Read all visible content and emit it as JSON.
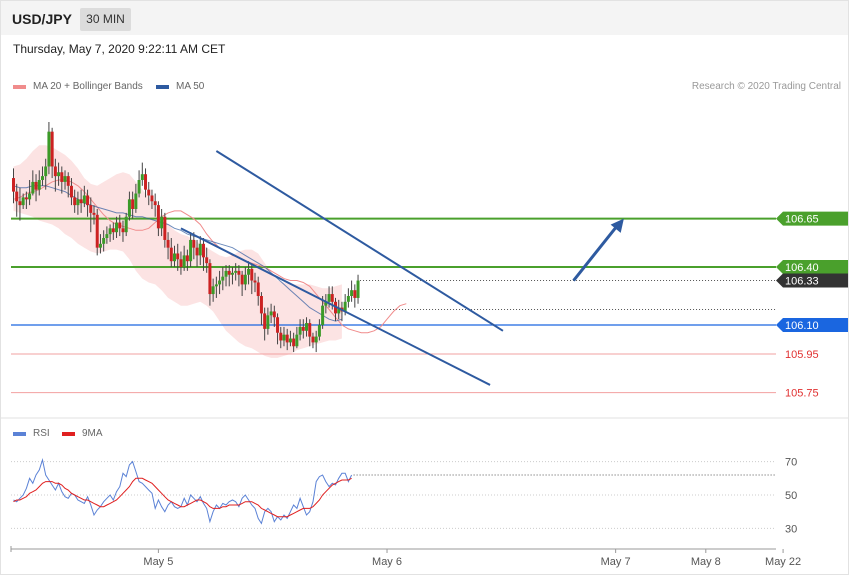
{
  "header": {
    "pair": "USD/JPY",
    "timeframe": "30 MIN"
  },
  "timestamp": "Thursday, May 7, 2020 9:22:11 AM CET",
  "legend": {
    "ma20": {
      "label": "MA 20 + Bollinger Bands",
      "color": "#f08c8c"
    },
    "ma50": {
      "label": "MA 50",
      "color": "#2e5aa0"
    },
    "rsi": {
      "label": "RSI",
      "color": "#5b82d6"
    },
    "rsi_ma": {
      "label": "9MA",
      "color": "#e02020"
    }
  },
  "credit": "Research © 2020 Trading Central",
  "chart_data": [
    {
      "type": "candlestick",
      "ylim": [
        105.7,
        107.2
      ],
      "x_labels": [
        "May 5",
        "May 6",
        "May 7",
        "May 8",
        "May 22"
      ],
      "levels": [
        {
          "label": "106.65",
          "value": 106.65,
          "kind": "resistance",
          "color": "#4aa02c"
        },
        {
          "label": "106.40",
          "value": 106.4,
          "kind": "resistance",
          "color": "#4aa02c"
        },
        {
          "label": "106.33",
          "value": 106.33,
          "kind": "last",
          "color": "#333333"
        },
        {
          "label": "106.10",
          "value": 106.1,
          "kind": "pivot",
          "color": "#1a66e0"
        },
        {
          "label": "105.95",
          "value": 105.95,
          "kind": "support",
          "color": "#e03030"
        },
        {
          "label": "105.75",
          "value": 105.75,
          "kind": "support",
          "color": "#e03030"
        }
      ],
      "candles": [
        [
          106.86,
          106.79,
          106.91,
          106.73
        ],
        [
          106.79,
          106.74,
          106.83,
          106.66
        ],
        [
          106.74,
          106.72,
          106.81,
          106.64
        ],
        [
          106.72,
          106.76,
          106.78,
          106.7
        ],
        [
          106.76,
          106.75,
          106.79,
          106.7
        ],
        [
          106.75,
          106.78,
          106.85,
          106.72
        ],
        [
          106.78,
          106.84,
          106.9,
          106.77
        ],
        [
          106.84,
          106.8,
          106.88,
          106.74
        ],
        [
          106.8,
          106.85,
          106.9,
          106.77
        ],
        [
          106.85,
          106.87,
          106.92,
          106.82
        ],
        [
          106.87,
          106.92,
          106.96,
          106.8
        ],
        [
          106.92,
          107.1,
          107.15,
          106.88
        ],
        [
          107.1,
          106.92,
          107.12,
          106.86
        ],
        [
          106.92,
          106.87,
          106.96,
          106.79
        ],
        [
          106.87,
          106.89,
          106.94,
          106.82
        ],
        [
          106.89,
          106.84,
          106.92,
          106.78
        ],
        [
          106.84,
          106.87,
          106.9,
          106.8
        ],
        [
          106.87,
          106.82,
          106.89,
          106.76
        ],
        [
          106.82,
          106.76,
          106.86,
          106.72
        ],
        [
          106.76,
          106.72,
          106.8,
          106.68
        ],
        [
          106.72,
          106.75,
          106.79,
          106.67
        ],
        [
          106.75,
          106.73,
          106.8,
          106.68
        ],
        [
          106.73,
          106.77,
          106.82,
          106.71
        ],
        [
          106.77,
          106.72,
          106.8,
          106.66
        ],
        [
          106.72,
          106.68,
          106.76,
          106.58
        ],
        [
          106.68,
          106.67,
          106.72,
          106.62
        ],
        [
          106.67,
          106.5,
          106.7,
          106.46
        ],
        [
          106.5,
          106.52,
          106.57,
          106.47
        ],
        [
          106.52,
          106.55,
          106.59,
          106.48
        ],
        [
          106.55,
          106.57,
          106.61,
          106.52
        ],
        [
          106.57,
          106.6,
          106.62,
          106.53
        ],
        [
          106.6,
          106.58,
          106.63,
          106.54
        ],
        [
          106.58,
          106.63,
          106.66,
          106.55
        ],
        [
          106.63,
          106.6,
          106.67,
          106.56
        ],
        [
          106.6,
          106.58,
          106.64,
          106.53
        ],
        [
          106.58,
          106.66,
          106.68,
          106.56
        ],
        [
          106.66,
          106.75,
          106.79,
          106.64
        ],
        [
          106.75,
          106.7,
          106.79,
          106.65
        ],
        [
          106.7,
          106.78,
          106.83,
          106.68
        ],
        [
          106.78,
          106.85,
          106.9,
          106.76
        ],
        [
          106.85,
          106.88,
          106.94,
          106.82
        ],
        [
          106.88,
          106.8,
          106.91,
          106.76
        ],
        [
          106.8,
          106.77,
          106.84,
          106.72
        ],
        [
          106.77,
          106.74,
          106.8,
          106.7
        ],
        [
          106.74,
          106.72,
          106.78,
          106.66
        ],
        [
          106.72,
          106.6,
          106.74,
          106.56
        ],
        [
          106.6,
          106.66,
          106.7,
          106.56
        ],
        [
          106.66,
          106.54,
          106.68,
          106.5
        ],
        [
          106.54,
          106.5,
          106.58,
          106.44
        ],
        [
          106.5,
          106.43,
          106.55,
          106.4
        ],
        [
          106.43,
          106.47,
          106.51,
          106.4
        ],
        [
          106.47,
          106.44,
          106.52,
          106.38
        ],
        [
          106.44,
          106.4,
          106.48,
          106.36
        ],
        [
          106.4,
          106.46,
          106.51,
          106.38
        ],
        [
          106.46,
          106.43,
          106.49,
          106.38
        ],
        [
          106.43,
          106.54,
          106.58,
          106.4
        ],
        [
          106.54,
          106.5,
          106.58,
          106.44
        ],
        [
          106.5,
          106.46,
          106.54,
          106.4
        ],
        [
          106.46,
          106.52,
          106.56,
          106.41
        ],
        [
          106.52,
          106.45,
          106.55,
          106.38
        ],
        [
          106.45,
          106.42,
          106.5,
          106.37
        ],
        [
          106.42,
          106.26,
          106.44,
          106.2
        ],
        [
          106.26,
          106.3,
          106.34,
          106.22
        ],
        [
          106.3,
          106.31,
          106.35,
          106.24
        ],
        [
          106.31,
          106.33,
          106.38,
          106.26
        ],
        [
          106.33,
          106.35,
          106.4,
          106.28
        ],
        [
          106.35,
          106.38,
          106.41,
          106.3
        ],
        [
          106.38,
          106.36,
          106.41,
          106.3
        ],
        [
          106.36,
          106.37,
          106.4,
          106.31
        ],
        [
          106.37,
          106.38,
          106.42,
          106.33
        ],
        [
          106.38,
          106.36,
          106.41,
          106.3
        ],
        [
          106.36,
          106.31,
          106.38,
          106.25
        ],
        [
          106.31,
          106.36,
          106.4,
          106.28
        ],
        [
          106.36,
          106.39,
          106.43,
          106.31
        ],
        [
          106.39,
          106.33,
          106.41,
          106.26
        ],
        [
          106.33,
          106.32,
          106.37,
          106.27
        ],
        [
          106.32,
          106.25,
          106.35,
          106.2
        ],
        [
          106.25,
          106.16,
          106.27,
          106.1
        ],
        [
          106.16,
          106.08,
          106.19,
          106.02
        ],
        [
          106.08,
          106.15,
          106.19,
          106.05
        ],
        [
          106.15,
          106.17,
          106.21,
          106.11
        ],
        [
          106.17,
          106.14,
          106.2,
          106.09
        ],
        [
          106.14,
          106.06,
          106.16,
          106.0
        ],
        [
          106.06,
          106.02,
          106.09,
          105.98
        ],
        [
          106.02,
          106.05,
          106.09,
          105.99
        ],
        [
          106.05,
          106.01,
          106.08,
          105.97
        ],
        [
          106.01,
          106.03,
          106.07,
          105.99
        ],
        [
          106.03,
          105.99,
          106.06,
          105.96
        ],
        [
          105.99,
          106.05,
          106.09,
          105.98
        ],
        [
          106.05,
          106.09,
          106.13,
          106.02
        ],
        [
          106.09,
          106.07,
          106.13,
          106.03
        ],
        [
          106.07,
          106.11,
          106.14,
          106.04
        ],
        [
          106.11,
          106.04,
          106.13,
          105.99
        ],
        [
          106.04,
          106.01,
          106.06,
          105.98
        ],
        [
          106.01,
          106.04,
          106.07,
          105.96
        ],
        [
          106.04,
          106.1,
          106.13,
          106.02
        ],
        [
          106.1,
          106.2,
          106.25,
          106.08
        ],
        [
          106.2,
          106.22,
          106.26,
          106.16
        ],
        [
          106.22,
          106.26,
          106.3,
          106.19
        ],
        [
          106.26,
          106.22,
          106.3,
          106.18
        ],
        [
          106.22,
          106.16,
          106.24,
          106.12
        ],
        [
          106.16,
          106.19,
          106.23,
          106.13
        ],
        [
          106.19,
          106.17,
          106.22,
          106.12
        ],
        [
          106.17,
          106.22,
          106.26,
          106.15
        ],
        [
          106.22,
          106.25,
          106.29,
          106.19
        ],
        [
          106.25,
          106.28,
          106.33,
          106.22
        ],
        [
          106.28,
          106.24,
          106.31,
          106.19
        ],
        [
          106.24,
          106.33,
          106.36,
          106.21
        ]
      ],
      "ma20": [
        106.75,
        106.76,
        106.78,
        106.79,
        106.8,
        106.82,
        106.84,
        106.85,
        106.85,
        106.84,
        106.82,
        106.79,
        106.75,
        106.71,
        106.67,
        106.64,
        106.62,
        106.61,
        106.6,
        106.59,
        106.59,
        106.6,
        106.63,
        106.66,
        106.68,
        106.69,
        106.69,
        106.67,
        106.65,
        106.62,
        106.57,
        106.53,
        106.5,
        106.48,
        106.46,
        106.45,
        106.43,
        106.42,
        106.41,
        106.4,
        106.38,
        106.36,
        106.34,
        106.33,
        106.33,
        106.32,
        106.3,
        106.26,
        106.22,
        106.18,
        106.14,
        106.1,
        106.08,
        106.07,
        106.06,
        106.06,
        106.07,
        106.09,
        106.13,
        106.17,
        106.2,
        106.21
      ],
      "ma50": [
        106.82,
        106.81,
        106.81,
        106.82,
        106.82,
        106.82,
        106.81,
        106.8,
        106.79,
        106.77,
        106.75,
        106.73,
        106.72,
        106.71,
        106.7,
        106.69,
        106.68,
        106.68,
        106.67,
        106.66,
        106.66,
        106.65,
        106.64,
        106.63,
        106.62,
        106.6,
        106.59,
        106.57,
        106.56,
        106.55,
        106.54,
        106.53,
        106.52,
        106.51,
        106.5,
        106.48,
        106.46,
        106.44,
        106.42,
        106.4,
        106.37,
        106.34,
        106.31,
        106.28,
        106.25,
        106.22,
        106.19,
        106.17,
        106.15,
        106.13,
        106.12,
        106.13
      ],
      "bb_upper": [
        106.92,
        106.93,
        106.96,
        107.0,
        107.03,
        107.03,
        107.02,
        107.0,
        106.98,
        106.95,
        106.91,
        106.86,
        106.83,
        106.82,
        106.84,
        106.86,
        106.88,
        106.89,
        106.88,
        106.84,
        106.8,
        106.76,
        106.71,
        106.66,
        106.62,
        106.59,
        106.57,
        106.56,
        106.54,
        106.52,
        106.5,
        106.48,
        106.46,
        106.45,
        106.46,
        106.48,
        106.49,
        106.49,
        106.47,
        106.42,
        106.37,
        106.33,
        106.32,
        106.31,
        106.31,
        106.31,
        106.31,
        106.3,
        106.29,
        106.29,
        106.3,
        106.31
      ],
      "bb_lower": [
        106.69,
        106.68,
        106.67,
        106.66,
        106.64,
        106.63,
        106.62,
        106.6,
        106.57,
        106.55,
        106.52,
        106.5,
        106.48,
        106.47,
        106.48,
        106.49,
        106.49,
        106.48,
        106.44,
        106.38,
        106.34,
        106.32,
        106.31,
        106.28,
        106.24,
        106.22,
        106.2,
        106.2,
        106.21,
        106.22,
        106.2,
        106.17,
        106.12,
        106.07,
        106.04,
        106.01,
        105.99,
        105.98,
        105.96,
        105.94,
        105.93,
        105.93,
        105.94,
        105.95,
        105.97,
        105.98,
        105.99,
        106.0,
        106.01,
        106.02,
        106.02,
        106.03
      ],
      "trendlines": [
        {
          "name": "channel-upper",
          "from": [
            63,
            107.0
          ],
          "to": [
            152,
            106.07
          ]
        },
        {
          "name": "channel-lower",
          "from": [
            52,
            106.6
          ],
          "to": [
            148,
            105.79
          ]
        }
      ],
      "projection": {
        "from": [
          173,
          106.33
        ],
        "to": [
          188,
          106.65
        ]
      }
    },
    {
      "type": "line",
      "title": "RSI",
      "ylim": [
        20,
        80
      ],
      "y_ticks": [
        30,
        50,
        70
      ],
      "series": [
        {
          "name": "RSI",
          "color": "#5b82d6",
          "values": [
            47,
            46,
            48,
            50,
            54,
            60,
            57,
            62,
            65,
            71,
            62,
            59,
            56,
            53,
            57,
            52,
            49,
            48,
            51,
            50,
            47,
            46,
            45,
            49,
            44,
            38,
            41,
            43,
            46,
            48,
            50,
            47,
            52,
            55,
            63,
            61,
            68,
            70,
            64,
            58,
            57,
            55,
            53,
            51,
            42,
            47,
            43,
            40,
            44,
            46,
            43,
            42,
            43,
            48,
            44,
            50,
            48,
            46,
            49,
            45,
            42,
            34,
            40,
            44,
            42,
            45,
            44,
            46,
            47,
            46,
            43,
            48,
            50,
            47,
            44,
            42,
            36,
            33,
            40,
            42,
            40,
            34,
            37,
            35,
            38,
            36,
            40,
            44,
            42,
            48,
            43,
            38,
            40,
            46,
            58,
            61,
            62,
            58,
            55,
            57,
            56,
            60,
            63,
            63,
            58,
            62
          ]
        },
        {
          "name": "9MA",
          "color": "#e02020",
          "values": [
            46,
            47,
            47,
            48,
            49,
            51,
            52,
            53,
            55,
            57,
            58,
            58,
            58,
            57,
            57,
            56,
            54,
            53,
            51,
            50,
            49,
            48,
            47,
            47,
            46,
            45,
            44,
            43,
            43,
            44,
            45,
            46,
            47,
            49,
            51,
            53,
            55,
            58,
            60,
            60,
            60,
            59,
            58,
            57,
            55,
            53,
            51,
            49,
            47,
            46,
            45,
            44,
            43,
            43,
            44,
            45,
            46,
            47,
            47,
            46,
            45,
            43,
            42,
            42,
            42,
            43,
            43,
            44,
            44,
            44,
            44,
            45,
            46,
            46,
            46,
            45,
            44,
            42,
            41,
            40,
            39,
            38,
            37,
            37,
            37,
            37,
            38,
            39,
            40,
            41,
            42,
            42,
            42,
            43,
            45,
            47,
            50,
            52,
            54,
            56,
            57,
            58,
            59,
            59,
            59,
            60
          ]
        }
      ]
    }
  ]
}
